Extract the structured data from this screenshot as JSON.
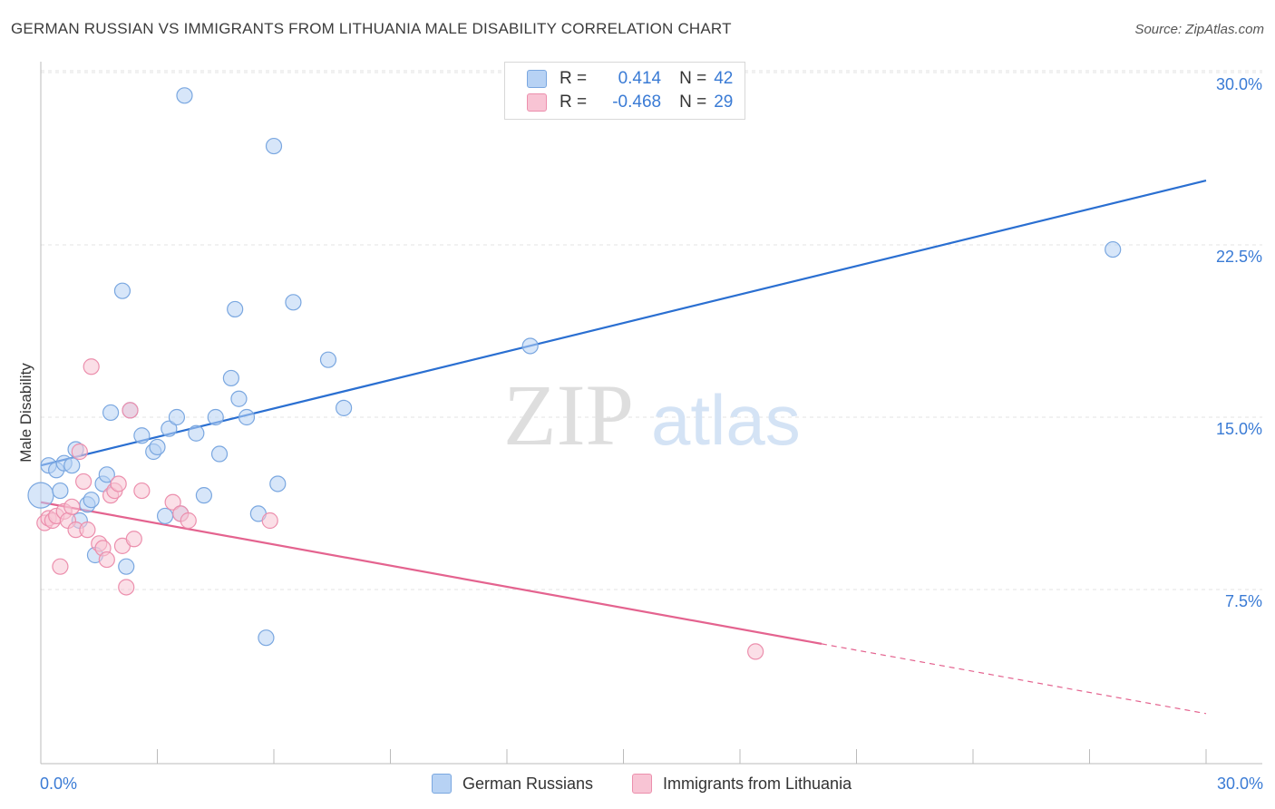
{
  "title": "GERMAN RUSSIAN VS IMMIGRANTS FROM LITHUANIA MALE DISABILITY CORRELATION CHART",
  "source": "Source: ZipAtlas.com",
  "legend": {
    "r_label": "R =",
    "n_label": "N =",
    "rows": [
      {
        "r": "0.414",
        "n": "42"
      },
      {
        "r": "-0.468",
        "n": "29"
      }
    ]
  },
  "watermark": {
    "zip": "ZIP",
    "atlas": "atlas"
  },
  "colors": {
    "blue_fill": "#b7d2f4",
    "blue_stroke": "#7aa7e0",
    "blue_line": "#2a6fd1",
    "pink_fill": "#f8c4d4",
    "pink_stroke": "#ec8fad",
    "pink_line": "#e4638f",
    "axis_text": "#3a7bd5",
    "grid": "#e3e3e3"
  },
  "chart_data": {
    "type": "scatter",
    "ylabel": "Male Disability",
    "xlabel": "",
    "xlim": [
      0,
      30
    ],
    "ylim": [
      0,
      31.5
    ],
    "x_tick_labels": {
      "left": "0.0%",
      "right": "30.0%"
    },
    "y_ticks": [
      {
        "value": 7.5,
        "label": "7.5%"
      },
      {
        "value": 15,
        "label": "15.0%"
      },
      {
        "value": 22.5,
        "label": "22.5%"
      },
      {
        "value": 30,
        "label": "30.0%"
      }
    ],
    "grid": true,
    "legend_position": "top-center",
    "series": [
      {
        "name": "German Russians",
        "color": "blue",
        "points": [
          [
            0.0,
            11.6
          ],
          [
            0.2,
            12.9
          ],
          [
            0.4,
            12.7
          ],
          [
            0.5,
            11.8
          ],
          [
            0.6,
            13.0
          ],
          [
            0.8,
            12.9
          ],
          [
            0.9,
            13.6
          ],
          [
            1.0,
            10.5
          ],
          [
            1.2,
            11.2
          ],
          [
            1.3,
            11.4
          ],
          [
            1.4,
            9.0
          ],
          [
            1.6,
            12.1
          ],
          [
            1.7,
            12.5
          ],
          [
            1.8,
            15.2
          ],
          [
            2.1,
            20.5
          ],
          [
            2.2,
            8.5
          ],
          [
            2.3,
            15.3
          ],
          [
            2.6,
            14.2
          ],
          [
            2.9,
            13.5
          ],
          [
            3.0,
            13.7
          ],
          [
            3.2,
            10.7
          ],
          [
            3.3,
            14.5
          ],
          [
            3.5,
            15.0
          ],
          [
            3.6,
            10.8
          ],
          [
            3.7,
            29.0
          ],
          [
            4.0,
            14.3
          ],
          [
            4.2,
            11.6
          ],
          [
            4.5,
            15.0
          ],
          [
            4.6,
            13.4
          ],
          [
            4.9,
            16.7
          ],
          [
            5.0,
            19.7
          ],
          [
            5.1,
            15.8
          ],
          [
            5.3,
            15.0
          ],
          [
            5.6,
            10.8
          ],
          [
            5.8,
            5.4
          ],
          [
            6.0,
            26.8
          ],
          [
            6.1,
            12.1
          ],
          [
            6.5,
            20.0
          ],
          [
            7.4,
            17.5
          ],
          [
            7.8,
            15.4
          ],
          [
            12.6,
            18.1
          ],
          [
            27.6,
            22.3
          ]
        ],
        "trend": {
          "x0": 0.0,
          "y0": 12.9,
          "x1": 30.0,
          "y1": 25.3,
          "solid_to": 30.0
        }
      },
      {
        "name": "Immigrants from Lithuania",
        "color": "pink",
        "points": [
          [
            0.1,
            10.4
          ],
          [
            0.2,
            10.6
          ],
          [
            0.3,
            10.5
          ],
          [
            0.4,
            10.7
          ],
          [
            0.5,
            8.5
          ],
          [
            0.6,
            10.9
          ],
          [
            0.7,
            10.5
          ],
          [
            0.8,
            11.1
          ],
          [
            0.9,
            10.1
          ],
          [
            1.0,
            13.5
          ],
          [
            1.1,
            12.2
          ],
          [
            1.2,
            10.1
          ],
          [
            1.3,
            17.2
          ],
          [
            1.5,
            9.5
          ],
          [
            1.6,
            9.3
          ],
          [
            1.7,
            8.8
          ],
          [
            1.8,
            11.6
          ],
          [
            1.9,
            11.8
          ],
          [
            2.0,
            12.1
          ],
          [
            2.1,
            9.4
          ],
          [
            2.2,
            7.6
          ],
          [
            2.3,
            15.3
          ],
          [
            2.4,
            9.7
          ],
          [
            2.6,
            11.8
          ],
          [
            3.4,
            11.3
          ],
          [
            3.6,
            10.8
          ],
          [
            3.8,
            10.5
          ],
          [
            5.9,
            10.5
          ],
          [
            18.4,
            4.8
          ]
        ],
        "trend": {
          "x0": 0.0,
          "y0": 11.3,
          "x1": 30.0,
          "y1": 2.1,
          "solid_to": 20.1
        }
      }
    ]
  }
}
